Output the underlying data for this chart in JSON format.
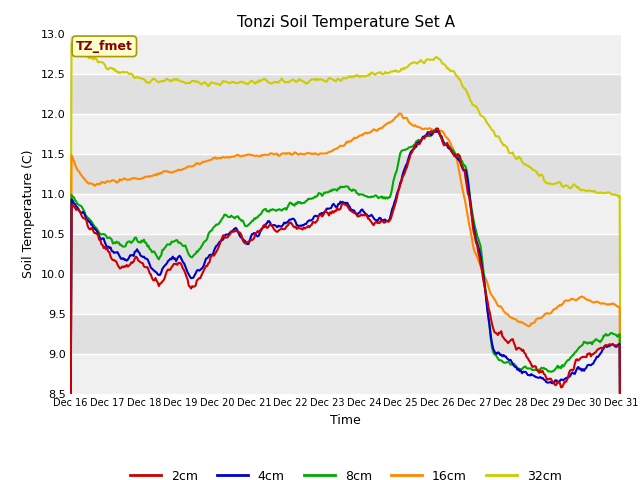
{
  "title": "Tonzi Soil Temperature Set A",
  "xlabel": "Time",
  "ylabel": "Soil Temperature (C)",
  "ylim": [
    8.5,
    13.0
  ],
  "xlim": [
    0,
    15
  ],
  "x_tick_labels": [
    "Dec 16",
    "Dec 17",
    "Dec 18",
    "Dec 19",
    "Dec 20",
    "Dec 21",
    "Dec 22",
    "Dec 23",
    "Dec 24",
    "Dec 25",
    "Dec 26",
    "Dec 27",
    "Dec 28",
    "Dec 29",
    "Dec 30",
    "Dec 31"
  ],
  "yticks": [
    8.5,
    9.0,
    9.5,
    10.0,
    10.5,
    11.0,
    11.5,
    12.0,
    12.5,
    13.0
  ],
  "annotation_text": "TZ_fmet",
  "annotation_color": "#880000",
  "annotation_bg": "#ffffcc",
  "annotation_edge": "#aa9900",
  "series_colors": {
    "2cm": "#cc0000",
    "4cm": "#0000cc",
    "8cm": "#00aa00",
    "16cm": "#ff8800",
    "32cm": "#cccc00"
  },
  "band_colors": [
    "#f0f0f0",
    "#e0e0e0"
  ],
  "grid_color": "#ffffff",
  "fig_bg": "#ffffff",
  "plot_bg": "#e8e8e8"
}
